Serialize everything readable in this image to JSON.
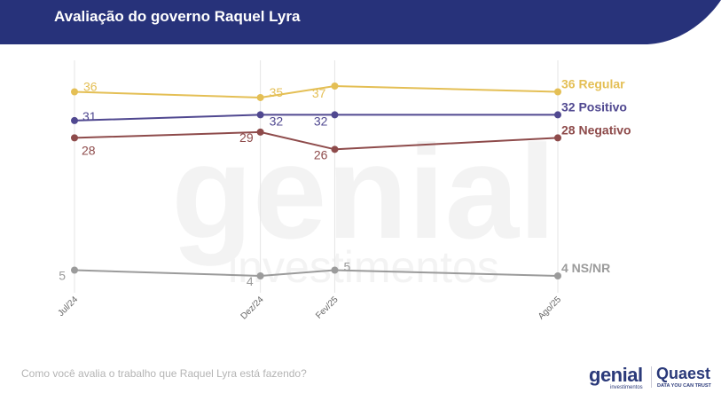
{
  "header": {
    "title": "Avaliação do governo Raquel Lyra"
  },
  "question": "Como você avalia o trabalho que Raquel Lyra está fazendo?",
  "watermark": {
    "word1": "genial",
    "word2": "investimentos"
  },
  "logos": {
    "genial": "genial",
    "genial_sub": "investimentos",
    "quaest": "Quaest",
    "quaest_sub": "DATA YOU CAN TRUST"
  },
  "colors": {
    "header_bg": "#27327a",
    "regular": "#e4bf55",
    "positivo": "#504890",
    "negativo": "#8e4b4b",
    "nsnr": "#9b9b9b"
  },
  "chart_data": {
    "type": "line",
    "x": [
      "Jul/24",
      "Dez/24",
      "Fev/25",
      "Ago/25"
    ],
    "x_dates": [
      "2024-07",
      "2024-12",
      "2025-02",
      "2025-08"
    ],
    "series": [
      {
        "name": "Regular",
        "values": [
          36,
          35,
          37,
          36
        ],
        "color": "#e4bf55"
      },
      {
        "name": "Positivo",
        "values": [
          31,
          32,
          32,
          32
        ],
        "color": "#504890"
      },
      {
        "name": "Negativo",
        "values": [
          28,
          29,
          26,
          28
        ],
        "color": "#8e4b4b"
      },
      {
        "name": "NS/NR",
        "values": [
          5,
          4,
          5,
          4
        ],
        "color": "#9b9b9b"
      }
    ],
    "title": "Avaliação do governo Raquel Lyra",
    "xlabel": "",
    "ylabel": "",
    "grid": "vertical",
    "legend": "end-of-line labels"
  }
}
